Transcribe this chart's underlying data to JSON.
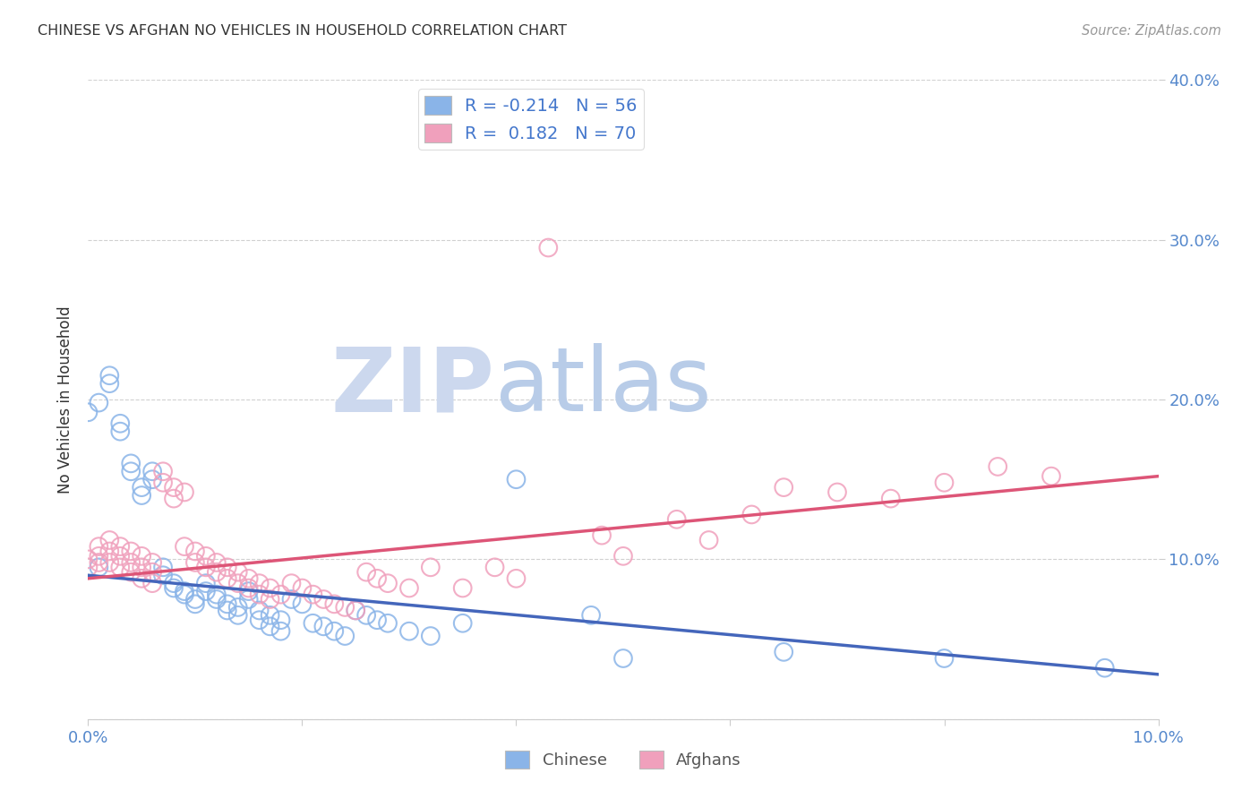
{
  "title": "CHINESE VS AFGHAN NO VEHICLES IN HOUSEHOLD CORRELATION CHART",
  "source": "Source: ZipAtlas.com",
  "ylabel": "No Vehicles in Household",
  "xlim": [
    0.0,
    0.1
  ],
  "ylim": [
    0.0,
    0.4
  ],
  "chinese_color": "#8ab4e8",
  "afghan_color": "#f0a0bc",
  "chinese_line_color": "#4466bb",
  "afghan_line_color": "#dd5577",
  "watermark_ZIP": "ZIP",
  "watermark_atlas": "atlas",
  "watermark_color_ZIP": "#ccd8ee",
  "watermark_color_atlas": "#b8cce8",
  "chinese_R": -0.214,
  "afghan_R": 0.182,
  "chinese_N": 56,
  "afghan_N": 70,
  "chinese_line_x": [
    0.0,
    0.1
  ],
  "chinese_line_y": [
    0.09,
    0.028
  ],
  "afghan_line_x": [
    0.0,
    0.1
  ],
  "afghan_line_y": [
    0.088,
    0.152
  ],
  "chinese_scatter": [
    [
      0.0,
      0.192
    ],
    [
      0.001,
      0.095
    ],
    [
      0.001,
      0.198
    ],
    [
      0.002,
      0.215
    ],
    [
      0.002,
      0.21
    ],
    [
      0.003,
      0.185
    ],
    [
      0.003,
      0.18
    ],
    [
      0.004,
      0.16
    ],
    [
      0.004,
      0.155
    ],
    [
      0.005,
      0.145
    ],
    [
      0.005,
      0.14
    ],
    [
      0.006,
      0.155
    ],
    [
      0.006,
      0.15
    ],
    [
      0.007,
      0.095
    ],
    [
      0.007,
      0.09
    ],
    [
      0.008,
      0.085
    ],
    [
      0.008,
      0.082
    ],
    [
      0.009,
      0.08
    ],
    [
      0.009,
      0.078
    ],
    [
      0.01,
      0.075
    ],
    [
      0.01,
      0.072
    ],
    [
      0.011,
      0.085
    ],
    [
      0.011,
      0.08
    ],
    [
      0.012,
      0.078
    ],
    [
      0.012,
      0.075
    ],
    [
      0.013,
      0.072
    ],
    [
      0.013,
      0.068
    ],
    [
      0.014,
      0.07
    ],
    [
      0.014,
      0.065
    ],
    [
      0.015,
      0.08
    ],
    [
      0.015,
      0.075
    ],
    [
      0.016,
      0.068
    ],
    [
      0.016,
      0.062
    ],
    [
      0.017,
      0.065
    ],
    [
      0.017,
      0.058
    ],
    [
      0.018,
      0.062
    ],
    [
      0.018,
      0.055
    ],
    [
      0.019,
      0.075
    ],
    [
      0.02,
      0.072
    ],
    [
      0.021,
      0.06
    ],
    [
      0.022,
      0.058
    ],
    [
      0.023,
      0.055
    ],
    [
      0.024,
      0.052
    ],
    [
      0.025,
      0.068
    ],
    [
      0.026,
      0.065
    ],
    [
      0.027,
      0.062
    ],
    [
      0.028,
      0.06
    ],
    [
      0.03,
      0.055
    ],
    [
      0.032,
      0.052
    ],
    [
      0.035,
      0.06
    ],
    [
      0.04,
      0.15
    ],
    [
      0.047,
      0.065
    ],
    [
      0.05,
      0.038
    ],
    [
      0.065,
      0.042
    ],
    [
      0.08,
      0.038
    ],
    [
      0.095,
      0.032
    ]
  ],
  "afghan_scatter": [
    [
      0.0,
      0.1
    ],
    [
      0.0,
      0.095
    ],
    [
      0.001,
      0.108
    ],
    [
      0.001,
      0.102
    ],
    [
      0.001,
      0.098
    ],
    [
      0.002,
      0.112
    ],
    [
      0.002,
      0.105
    ],
    [
      0.002,
      0.098
    ],
    [
      0.003,
      0.108
    ],
    [
      0.003,
      0.102
    ],
    [
      0.003,
      0.095
    ],
    [
      0.004,
      0.105
    ],
    [
      0.004,
      0.098
    ],
    [
      0.004,
      0.092
    ],
    [
      0.005,
      0.102
    ],
    [
      0.005,
      0.095
    ],
    [
      0.005,
      0.088
    ],
    [
      0.006,
      0.098
    ],
    [
      0.006,
      0.092
    ],
    [
      0.006,
      0.085
    ],
    [
      0.007,
      0.155
    ],
    [
      0.007,
      0.148
    ],
    [
      0.008,
      0.145
    ],
    [
      0.008,
      0.138
    ],
    [
      0.009,
      0.142
    ],
    [
      0.009,
      0.108
    ],
    [
      0.01,
      0.105
    ],
    [
      0.01,
      0.098
    ],
    [
      0.011,
      0.102
    ],
    [
      0.011,
      0.095
    ],
    [
      0.012,
      0.098
    ],
    [
      0.012,
      0.092
    ],
    [
      0.013,
      0.095
    ],
    [
      0.013,
      0.088
    ],
    [
      0.014,
      0.092
    ],
    [
      0.014,
      0.085
    ],
    [
      0.015,
      0.088
    ],
    [
      0.015,
      0.082
    ],
    [
      0.016,
      0.085
    ],
    [
      0.016,
      0.078
    ],
    [
      0.017,
      0.082
    ],
    [
      0.017,
      0.075
    ],
    [
      0.018,
      0.078
    ],
    [
      0.019,
      0.085
    ],
    [
      0.02,
      0.082
    ],
    [
      0.021,
      0.078
    ],
    [
      0.022,
      0.075
    ],
    [
      0.023,
      0.072
    ],
    [
      0.024,
      0.07
    ],
    [
      0.025,
      0.068
    ],
    [
      0.026,
      0.092
    ],
    [
      0.027,
      0.088
    ],
    [
      0.028,
      0.085
    ],
    [
      0.03,
      0.082
    ],
    [
      0.032,
      0.095
    ],
    [
      0.035,
      0.082
    ],
    [
      0.038,
      0.095
    ],
    [
      0.04,
      0.088
    ],
    [
      0.043,
      0.295
    ],
    [
      0.048,
      0.115
    ],
    [
      0.05,
      0.102
    ],
    [
      0.055,
      0.125
    ],
    [
      0.058,
      0.112
    ],
    [
      0.062,
      0.128
    ],
    [
      0.065,
      0.145
    ],
    [
      0.07,
      0.142
    ],
    [
      0.075,
      0.138
    ],
    [
      0.08,
      0.148
    ],
    [
      0.085,
      0.158
    ],
    [
      0.09,
      0.152
    ]
  ]
}
